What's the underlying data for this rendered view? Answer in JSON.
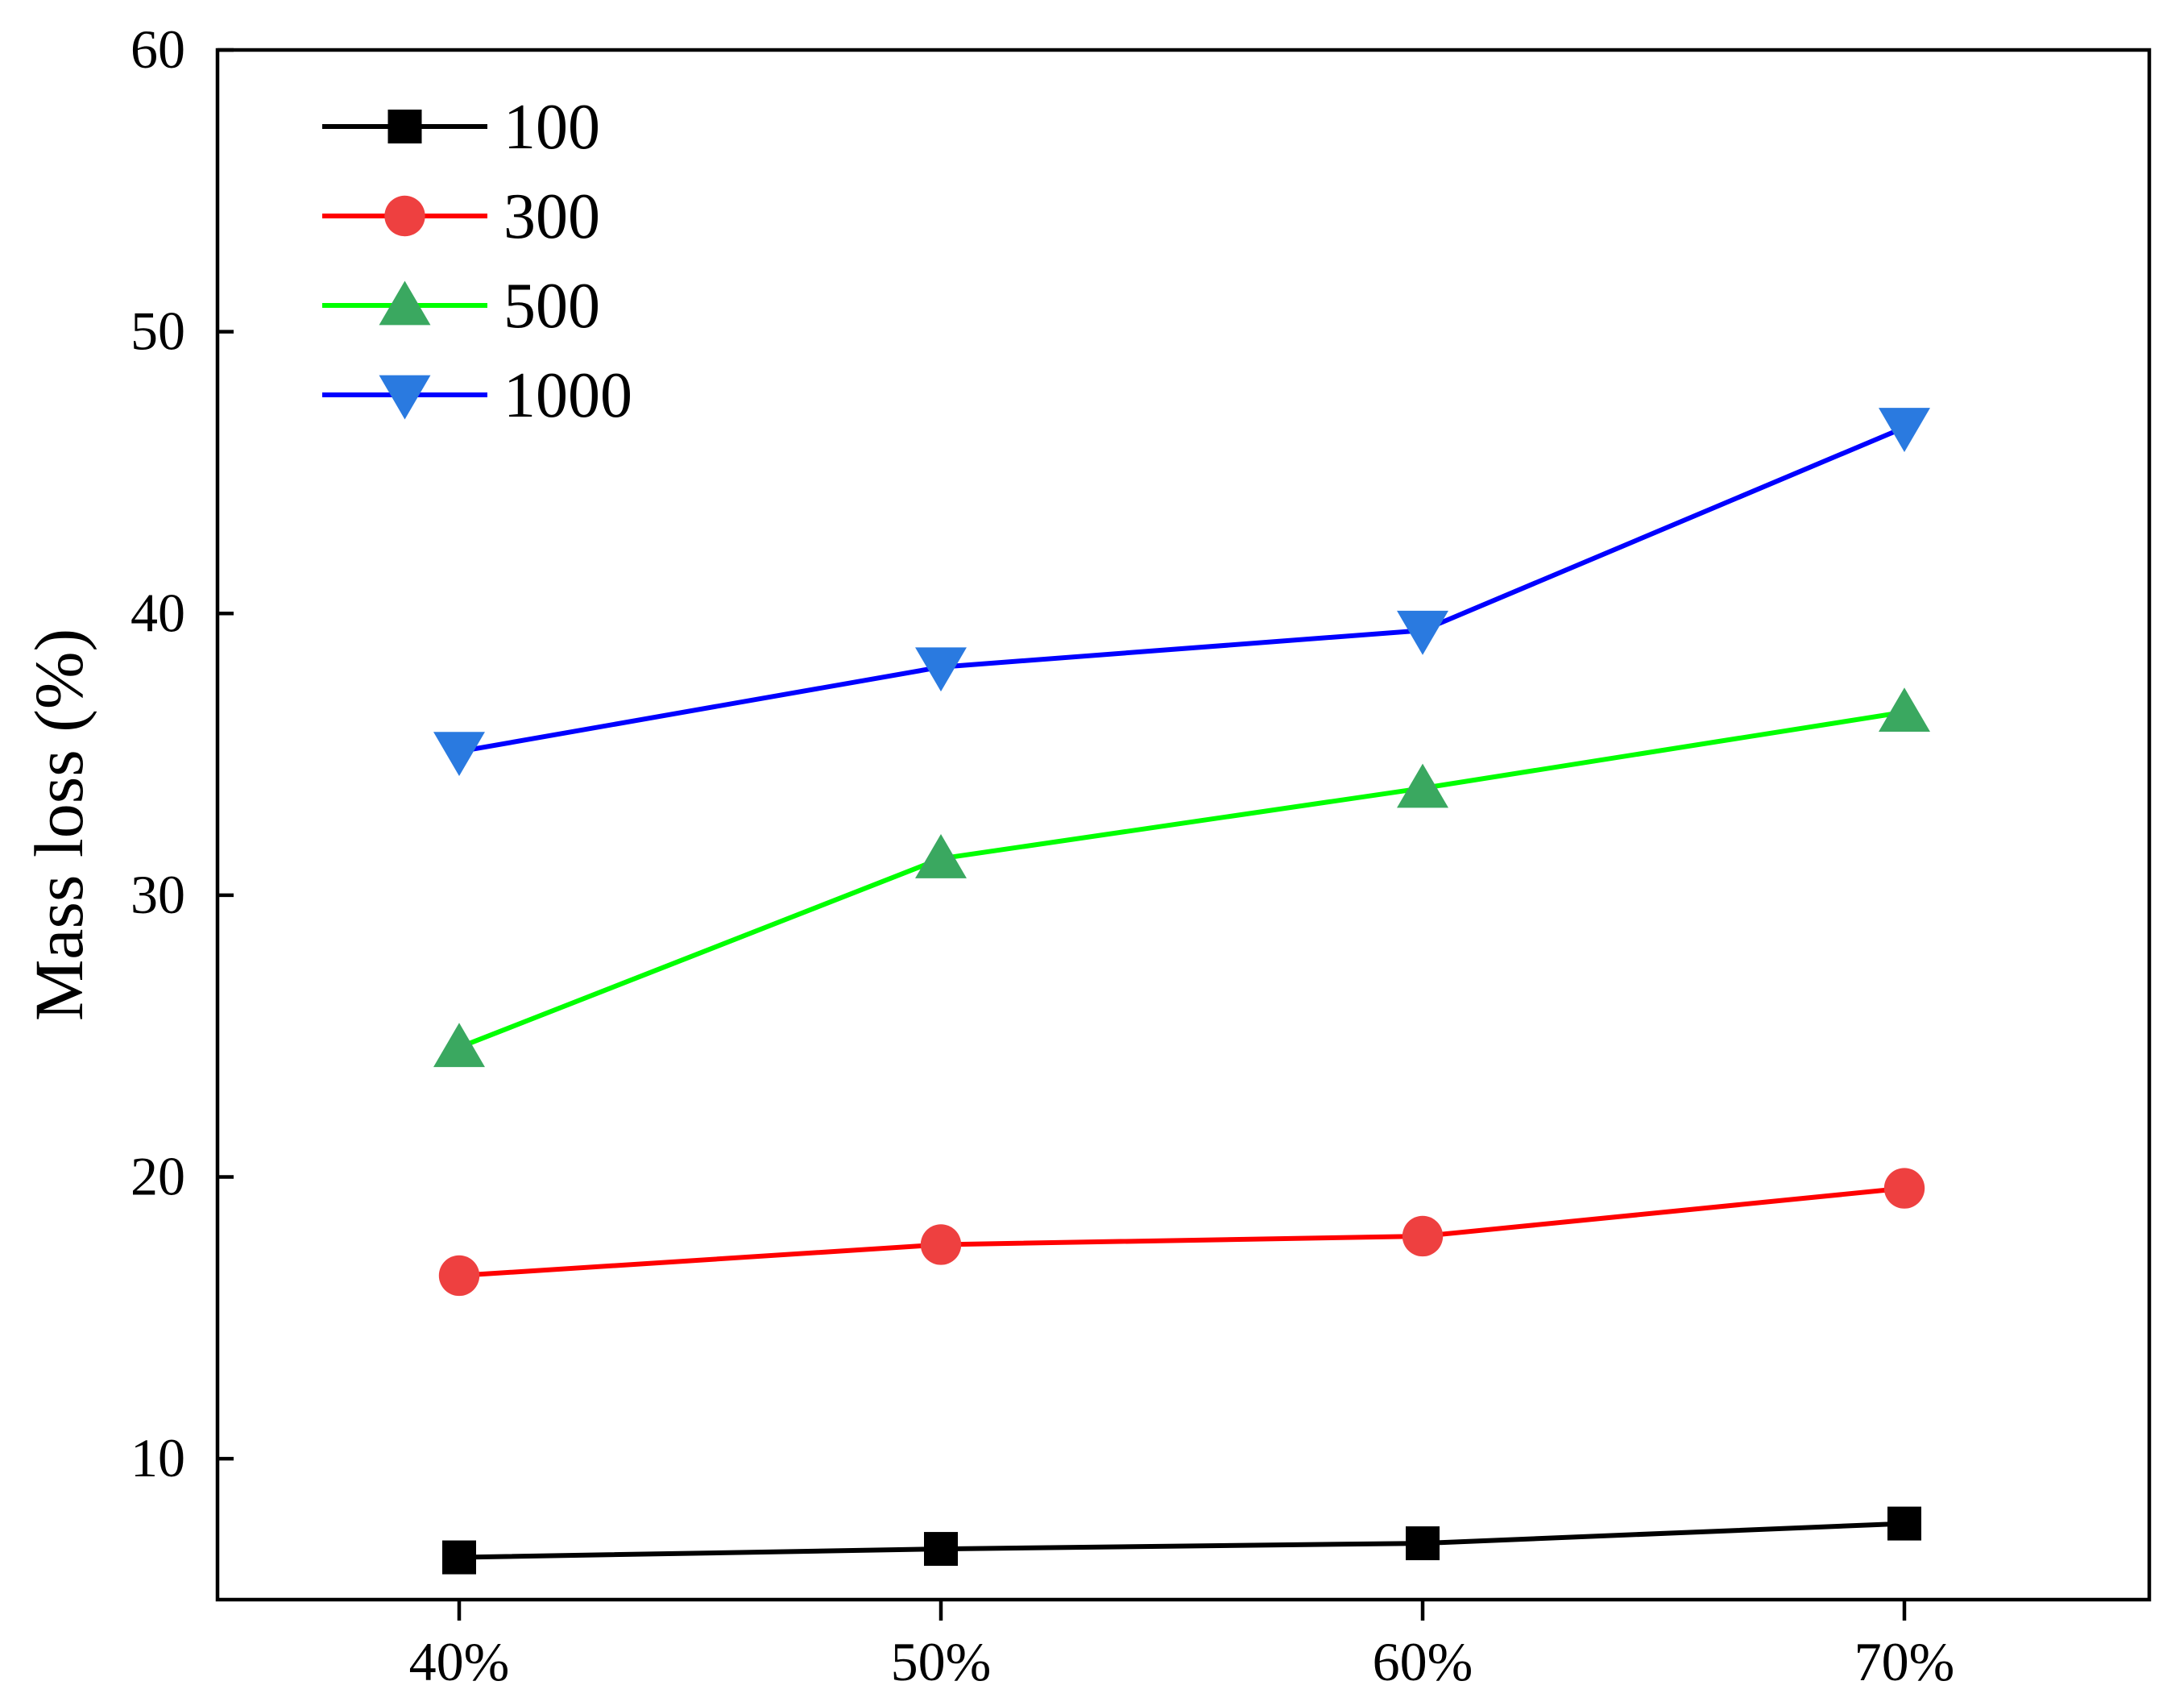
{
  "chart_data": {
    "type": "line",
    "categories": [
      "40%",
      "50%",
      "60%",
      "70%"
    ],
    "series": [
      {
        "name": "100",
        "values": [
          6.5,
          6.8,
          7.0,
          7.7
        ],
        "color": "#000000",
        "marker": "square",
        "marker_color": "#000000"
      },
      {
        "name": "300",
        "values": [
          16.5,
          17.6,
          17.9,
          19.6
        ],
        "color": "#ff0000",
        "marker": "circle",
        "marker_color": "#ee4040"
      },
      {
        "name": "500",
        "values": [
          24.6,
          31.3,
          33.8,
          36.5
        ],
        "color": "#00ff00",
        "marker": "triangle-up",
        "marker_color": "#3aa860"
      },
      {
        "name": "1000",
        "values": [
          35.1,
          38.1,
          39.4,
          46.6
        ],
        "color": "#0000ff",
        "marker": "triangle-down",
        "marker_color": "#2a7ae0"
      }
    ],
    "ylabel": "Mass loss (%)",
    "xlabel": "",
    "ylim": [
      5,
      60
    ],
    "yticks": [
      10,
      20,
      30,
      40,
      50,
      60
    ],
    "grid": false,
    "legend_position": "top-left"
  }
}
